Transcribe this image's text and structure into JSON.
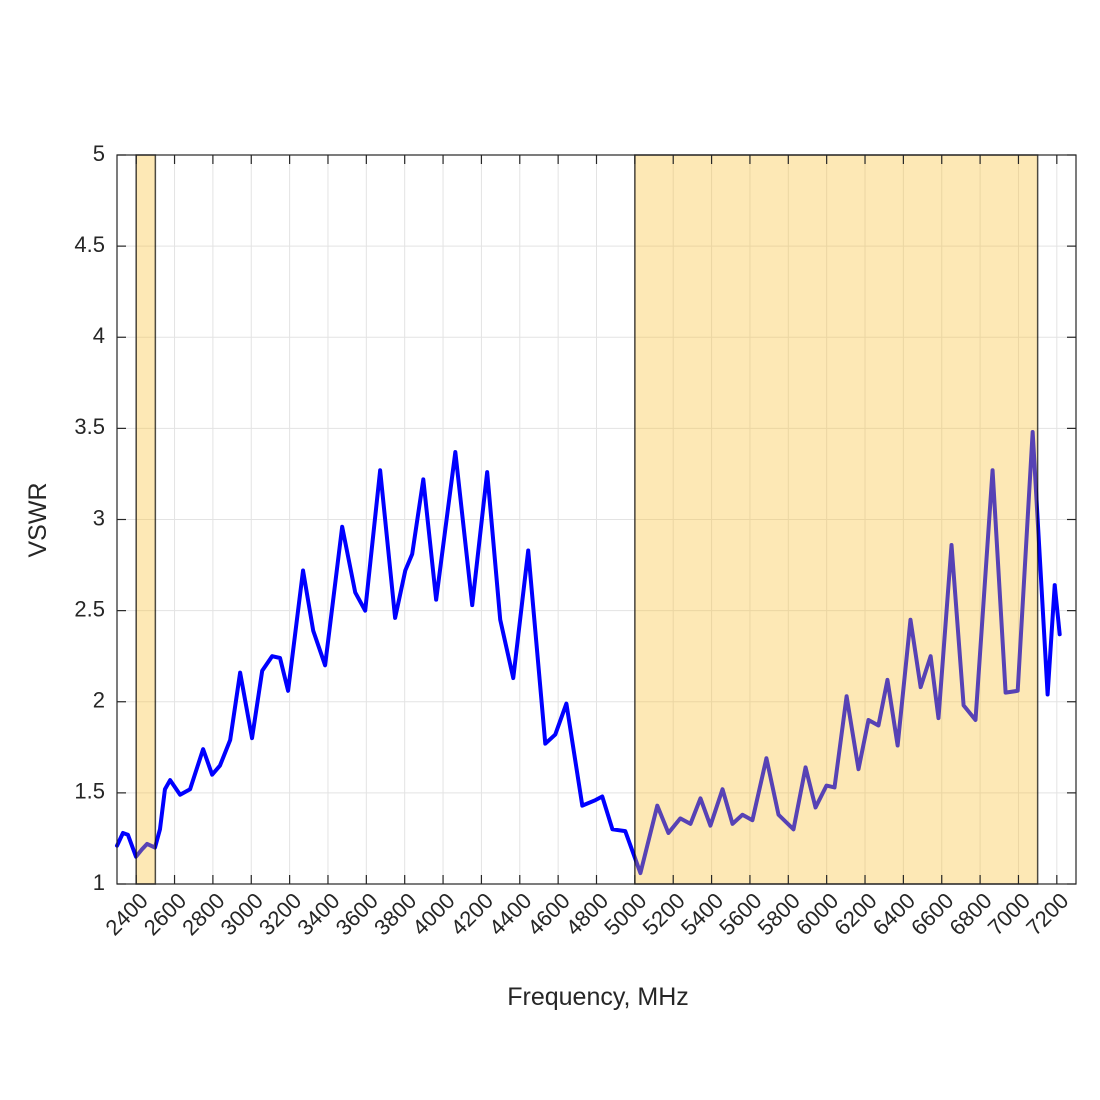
{
  "chart_data": {
    "type": "line",
    "xlabel": "Frequency, MHz",
    "ylabel": "VSWR",
    "xlim": [
      2300,
      7300
    ],
    "ylim": [
      1,
      5
    ],
    "xticks": [
      2400,
      2600,
      2800,
      3000,
      3200,
      3400,
      3600,
      3800,
      4000,
      4200,
      4400,
      4600,
      4800,
      5000,
      5200,
      5400,
      5600,
      5800,
      6000,
      6200,
      6400,
      6600,
      6800,
      7000,
      7200
    ],
    "yticks": [
      1,
      1.5,
      2,
      2.5,
      3,
      3.5,
      4,
      4.5,
      5
    ],
    "grid": true,
    "bands": [
      [
        2400,
        2500
      ],
      [
        5000,
        7100
      ]
    ],
    "band_color": "#f8bd2a",
    "series": [
      {
        "color": "#0000ff",
        "x": [
          2300,
          2331,
          2357,
          2399,
          2430,
          2457,
          2498,
          2524,
          2550,
          2577,
          2629,
          2681,
          2749,
          2796,
          2837,
          2890,
          2942,
          3004,
          3057,
          3109,
          3150,
          3192,
          3270,
          3323,
          3385,
          3474,
          3542,
          3594,
          3672,
          3750,
          3803,
          3839,
          3897,
          3964,
          4064,
          4152,
          4230,
          4298,
          4366,
          4444,
          4533,
          4585,
          4643,
          4726,
          4794,
          4830,
          4883,
          4950,
          5029,
          5117,
          5175,
          5237,
          5290,
          5342,
          5394,
          5457,
          5509,
          5561,
          5613,
          5686,
          5749,
          5827,
          5890,
          5942,
          5999,
          6041,
          6104,
          6166,
          6218,
          6270,
          6317,
          6370,
          6437,
          6490,
          6542,
          6583,
          6651,
          6714,
          6776,
          6865,
          6933,
          6996,
          7074,
          7152,
          7189,
          7215
        ],
        "values": [
          1.21,
          1.28,
          1.27,
          1.15,
          1.19,
          1.22,
          1.2,
          1.3,
          1.52,
          1.57,
          1.49,
          1.52,
          1.74,
          1.6,
          1.65,
          1.79,
          2.16,
          1.8,
          2.17,
          2.25,
          2.24,
          2.06,
          2.72,
          2.39,
          2.2,
          2.96,
          2.6,
          2.5,
          3.27,
          2.46,
          2.72,
          2.81,
          3.22,
          2.56,
          3.37,
          2.53,
          3.26,
          2.45,
          2.13,
          2.83,
          1.77,
          1.82,
          1.99,
          1.43,
          1.46,
          1.48,
          1.3,
          1.29,
          1.06,
          1.43,
          1.28,
          1.36,
          1.33,
          1.47,
          1.32,
          1.52,
          1.33,
          1.38,
          1.35,
          1.69,
          1.38,
          1.3,
          1.64,
          1.42,
          1.54,
          1.53,
          2.03,
          1.63,
          1.9,
          1.87,
          2.12,
          1.76,
          2.45,
          2.08,
          2.25,
          1.91,
          2.86,
          1.98,
          1.9,
          3.27,
          2.05,
          2.06,
          3.48,
          2.04,
          2.64,
          2.37
        ]
      }
    ]
  }
}
